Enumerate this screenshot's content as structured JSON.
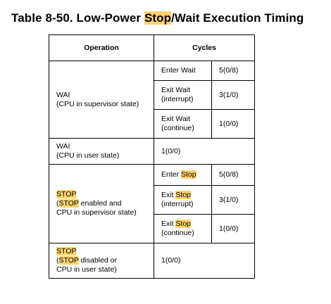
{
  "title": {
    "prefix": "Table 8-50. Low-Power ",
    "highlight": "Stop",
    "suffix": "/Wait Execution Timing"
  },
  "header": {
    "operation": "Operation",
    "cycles": "Cycles"
  },
  "rows": {
    "wai_supervisor": {
      "op_line1": "WAI",
      "op_line2": "(CPU in supervisor state)",
      "sub": [
        {
          "line1": "Enter Wait",
          "line2": "",
          "cycles": "5(0/8)"
        },
        {
          "line1": "Exit Wait",
          "line2": "(interrupt)",
          "cycles": "3(1/0)"
        },
        {
          "line1": "Exit Wait",
          "line2": "(continue)",
          "cycles": "1(0/0)"
        }
      ]
    },
    "wai_user": {
      "op_line1": "WAI",
      "op_line2": "(CPU in user state)",
      "cycles": "1(0/0)"
    },
    "stop_enabled": {
      "op_line1": "STOP",
      "op_line2_hl": "STOP",
      "op_line2_rest": " enabled and",
      "op_line3": "CPU in supervisor state)",
      "sub": [
        {
          "prefix": "Enter ",
          "hl": "Stop",
          "line2": "",
          "cycles": "5(0/8)"
        },
        {
          "prefix": "Exit ",
          "hl": "Stop",
          "line2": "(interrupt)",
          "cycles": "3(1/0)"
        },
        {
          "prefix": "Exit ",
          "hl": "Stop",
          "line2": "(continue)",
          "cycles": "1(0/0)"
        }
      ]
    },
    "stop_disabled": {
      "op_line1": "STOP",
      "op_line2_hl": "STOP",
      "op_line2_rest": " disabled or",
      "op_line3": "CPU in user state)",
      "cycles": "1(0/0)"
    }
  },
  "colors": {
    "highlight": "#ffd36b"
  }
}
